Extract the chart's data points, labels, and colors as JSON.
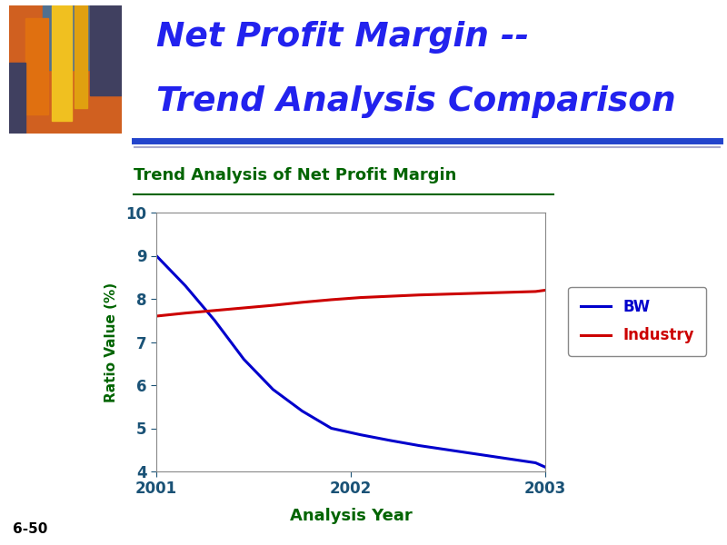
{
  "title_line1": "Net Profit Margin --",
  "title_line2": "Trend Analysis Comparison",
  "chart_title": "Trend Analysis of Net Profit Margin",
  "xlabel": "Analysis Year",
  "ylabel": "Ratio Value (%)",
  "ylim": [
    4,
    10
  ],
  "yticks": [
    4,
    5,
    6,
    7,
    8,
    9,
    10
  ],
  "xticks": [
    2001,
    2002,
    2003
  ],
  "years": [
    2001,
    2001.15,
    2001.3,
    2001.45,
    2001.6,
    2001.75,
    2001.9,
    2002.05,
    2002.2,
    2002.35,
    2002.5,
    2002.65,
    2002.8,
    2002.95,
    2003
  ],
  "bw_values": [
    9.0,
    8.3,
    7.5,
    6.6,
    5.9,
    5.4,
    5.0,
    4.85,
    4.72,
    4.6,
    4.5,
    4.4,
    4.3,
    4.2,
    4.1
  ],
  "industry_values": [
    7.6,
    7.67,
    7.73,
    7.79,
    7.85,
    7.92,
    7.98,
    8.03,
    8.06,
    8.09,
    8.11,
    8.13,
    8.15,
    8.17,
    8.2
  ],
  "bw_color": "#0000CC",
  "industry_color": "#CC0000",
  "bw_label": "BW",
  "industry_label": "Industry",
  "chart_title_color": "#006400",
  "axis_label_color": "#006400",
  "tick_color": "#1a5276",
  "title_color": "#2222ee",
  "line_width": 2.2,
  "footer_text": "6-50",
  "separator_color_blue": "#2244cc",
  "separator_color_gray": "#aaaacc",
  "bg_color": "#ffffff",
  "legend_text_color_bw": "#000066",
  "legend_text_color_ind": "#000000",
  "img_colors": {
    "bg": "#d06020",
    "tower1_left": "#e07010",
    "tower1_right": "#c05010",
    "tower_tall": "#f0c020",
    "tower_tall2": "#e0a010",
    "sky": "#507090",
    "dark_bldg": "#404060"
  }
}
